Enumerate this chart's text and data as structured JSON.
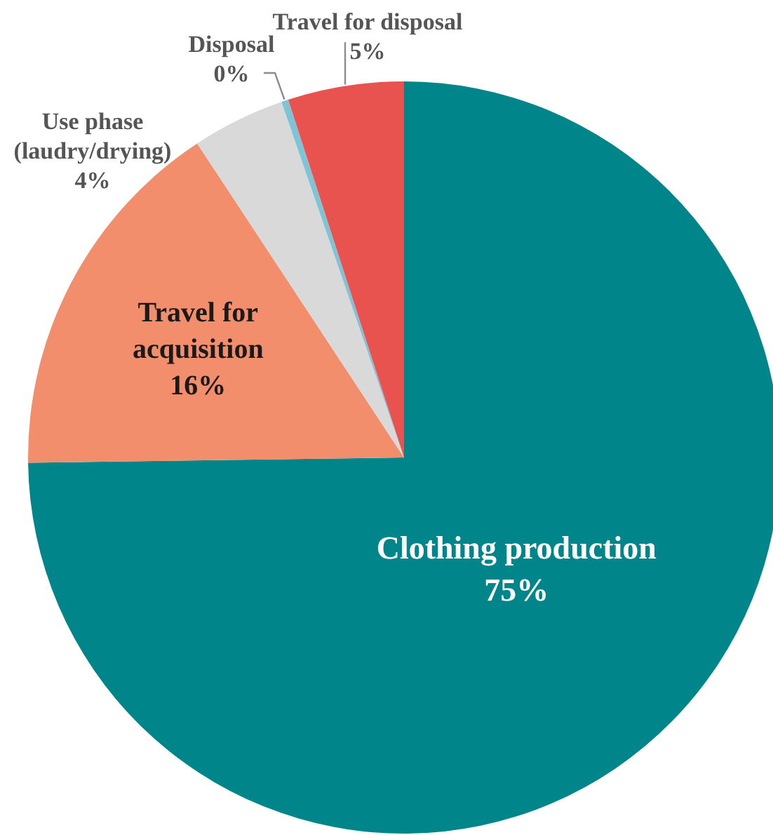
{
  "chart_data": {
    "type": "pie",
    "categories": [
      "Clothing production",
      "Travel for\nacquisition",
      "Use phase\n(laudry/drying)",
      "Disposal",
      "Travel for disposal"
    ],
    "values": [
      75,
      16,
      4,
      0.3,
      5
    ],
    "colors": [
      "#00868a",
      "#f28e6b",
      "#d9d9d9",
      "#7fc4d6",
      "#e8524f"
    ],
    "value_labels": [
      "75%",
      "16%",
      "4%",
      "0%",
      "5%"
    ]
  }
}
